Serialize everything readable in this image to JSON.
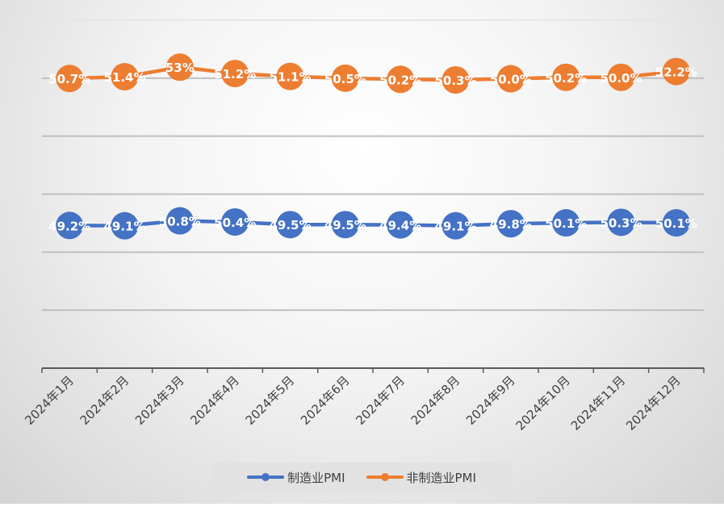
{
  "chart_data": {
    "type": "line",
    "stacked": true,
    "title": "",
    "xlabel": "",
    "ylabel": "",
    "ylim": [
      0,
      120
    ],
    "ytick_step": 20,
    "y_axis_labels_visible": false,
    "grid": true,
    "legend_position": "bottom",
    "categories": [
      "2024年1月",
      "2024年2月",
      "2024年3月",
      "2024年4月",
      "2024年5月",
      "2024年6月",
      "2024年7月",
      "2024年8月",
      "2024年9月",
      "2024年10月",
      "2024年11月",
      "2024年12月"
    ],
    "series": [
      {
        "name": "制造业PMI",
        "color": "#4472c4",
        "values": [
          49.2,
          49.1,
          50.8,
          50.4,
          49.5,
          49.5,
          49.4,
          49.1,
          49.8,
          50.1,
          50.3,
          50.1
        ],
        "labels": [
          "49.2%",
          "49.1%",
          "50.8%",
          "50.4%",
          "49.5%",
          "49.5%",
          "49.4%",
          "49.1%",
          "49.8%",
          "50.1%",
          "50.3%",
          "50.1%"
        ]
      },
      {
        "name": "非制造业PMI",
        "color": "#ed7d31",
        "values": [
          50.7,
          51.4,
          53,
          51.2,
          51.1,
          50.5,
          50.2,
          50.3,
          50.0,
          50.2,
          50.0,
          52.2
        ],
        "labels": [
          "50.7%",
          "51.4%",
          "53%",
          "51.2%",
          "51.1%",
          "50.5%",
          "50.2%",
          "50.3%",
          "50.0%",
          "50.2%",
          "50.0%",
          "52.2%"
        ]
      }
    ]
  }
}
